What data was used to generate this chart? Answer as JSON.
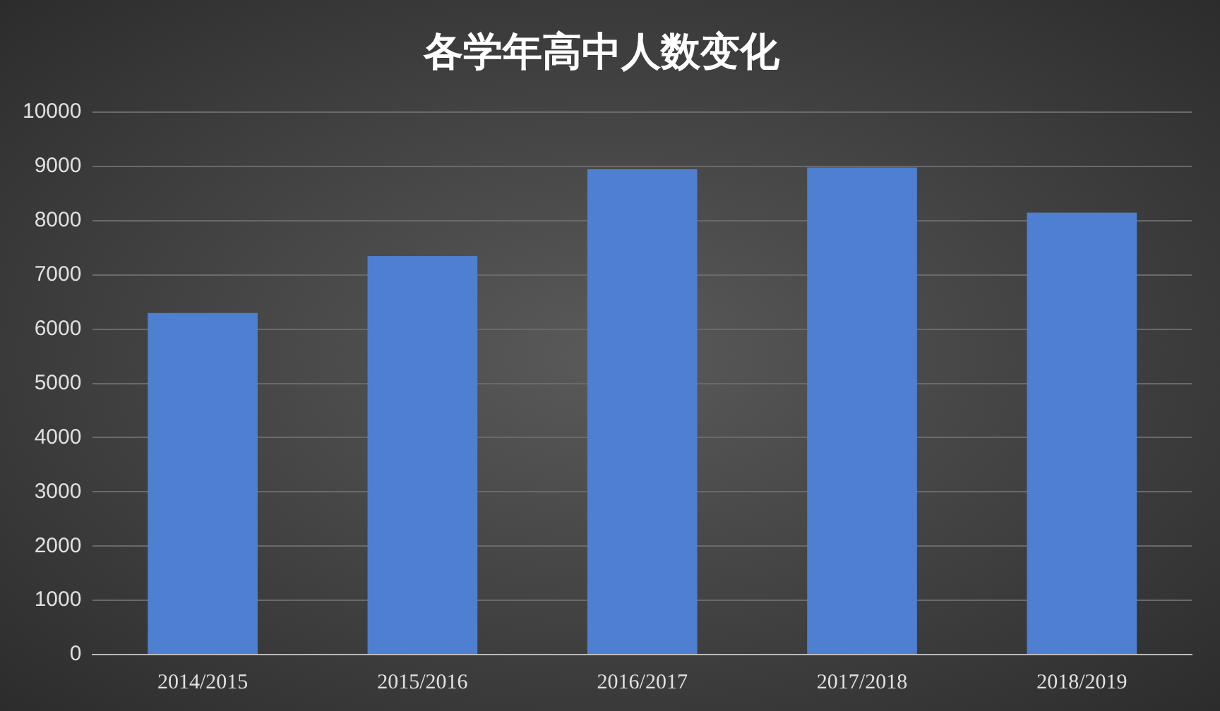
{
  "chart_data": {
    "type": "bar",
    "title": "各学年高中人数变化",
    "categories": [
      "2014/2015",
      "2015/2016",
      "2016/2017",
      "2017/2018",
      "2018/2019"
    ],
    "values": [
      6300,
      7350,
      8950,
      8980,
      8150
    ],
    "color": "#4f7fd0",
    "ylim": [
      0,
      10000
    ],
    "yticks": [
      0,
      1000,
      2000,
      3000,
      4000,
      5000,
      6000,
      7000,
      8000,
      9000,
      10000
    ],
    "grid": "y",
    "legend": false
  }
}
